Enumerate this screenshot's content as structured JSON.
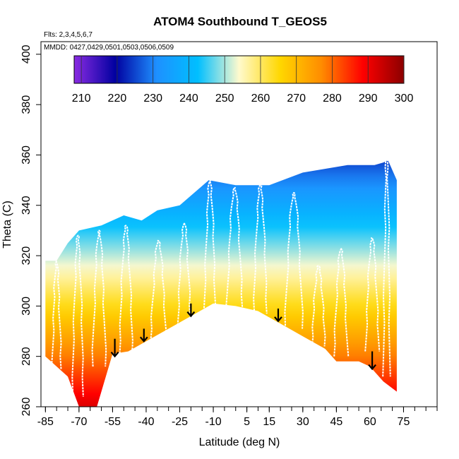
{
  "chart_data": {
    "type": "heatmap",
    "title": "ATOM4 Southbound T_GEOS5",
    "subtitle_flights": "Flts: 2,3,4,5,6,7",
    "subtitle_dates": "MMDD: 0427,0429,0501,0503,0506,0509",
    "xlabel": "Latitude (deg N)",
    "ylabel": "Theta (C)",
    "xlim": [
      -87,
      90
    ],
    "ylim": [
      260,
      405
    ],
    "x_ticks": [
      -85,
      -70,
      -55,
      -40,
      -25,
      -10,
      5,
      15,
      30,
      45,
      60,
      75
    ],
    "y_ticks": [
      260,
      280,
      300,
      320,
      340,
      360,
      380,
      400
    ],
    "colorbar": {
      "min": 208,
      "max": 300,
      "ticks": [
        210,
        220,
        230,
        240,
        250,
        260,
        270,
        280,
        290,
        300
      ],
      "colors": [
        "#8a2be2",
        "#0000a0",
        "#1e90ff",
        "#00bfff",
        "#fffacd",
        "#ffd700",
        "#ff8c00",
        "#ff0000",
        "#8b0000"
      ]
    },
    "colored_region": {
      "upper_boundary": [
        [
          -85,
          318
        ],
        [
          -80,
          318
        ],
        [
          -75,
          325
        ],
        [
          -70,
          330
        ],
        [
          -60,
          332
        ],
        [
          -50,
          336
        ],
        [
          -42,
          334
        ],
        [
          -35,
          338
        ],
        [
          -25,
          340
        ],
        [
          -12,
          350
        ],
        [
          0,
          348
        ],
        [
          15,
          348
        ],
        [
          30,
          353
        ],
        [
          50,
          356
        ],
        [
          62,
          356
        ],
        [
          66,
          357
        ],
        [
          68,
          358
        ],
        [
          72,
          350
        ]
      ],
      "lower_boundary": [
        [
          -85,
          280
        ],
        [
          -75,
          272
        ],
        [
          -70,
          260
        ],
        [
          -62,
          260
        ],
        [
          -55,
          281
        ],
        [
          -48,
          282
        ],
        [
          -40,
          286
        ],
        [
          -30,
          291
        ],
        [
          -18,
          297
        ],
        [
          -10,
          301
        ],
        [
          0,
          300
        ],
        [
          10,
          298
        ],
        [
          20,
          293
        ],
        [
          30,
          288
        ],
        [
          40,
          283
        ],
        [
          45,
          278
        ],
        [
          55,
          278
        ],
        [
          60,
          276
        ],
        [
          66,
          270
        ],
        [
          72,
          266
        ]
      ],
      "temperature_at_surface_c": 292,
      "temperature_at_top_c": 222
    },
    "tropopause_markers": [
      {
        "lat": -54,
        "theta_top": 287,
        "theta_bottom": 280
      },
      {
        "lat": -41,
        "theta_top": 291,
        "theta_bottom": 286
      },
      {
        "lat": -20,
        "theta_top": 301,
        "theta_bottom": 296
      },
      {
        "lat": 19,
        "theta_top": 299,
        "theta_bottom": 294
      },
      {
        "lat": 61,
        "theta_top": 282,
        "theta_bottom": 275
      }
    ],
    "flight_profiles_white": [
      {
        "lat_start": -82,
        "lat_end": -78,
        "theta_min": 275,
        "theta_max": 318
      },
      {
        "lat_start": -73,
        "lat_end": -68,
        "theta_min": 264,
        "theta_max": 328
      },
      {
        "lat_start": -64,
        "lat_end": -58,
        "theta_min": 276,
        "theta_max": 330
      },
      {
        "lat_start": -52,
        "lat_end": -46,
        "theta_min": 280,
        "theta_max": 332
      },
      {
        "lat_start": -38,
        "lat_end": -31,
        "theta_min": 286,
        "theta_max": 326
      },
      {
        "lat_start": -26,
        "lat_end": -20,
        "theta_min": 290,
        "theta_max": 333
      },
      {
        "lat_start": -14,
        "lat_end": -9,
        "theta_min": 298,
        "theta_max": 350
      },
      {
        "lat_start": -4,
        "lat_end": 3,
        "theta_min": 299,
        "theta_max": 347
      },
      {
        "lat_start": 8,
        "lat_end": 14,
        "theta_min": 297,
        "theta_max": 348
      },
      {
        "lat_start": 22,
        "lat_end": 30,
        "theta_min": 291,
        "theta_max": 345
      },
      {
        "lat_start": 34,
        "lat_end": 40,
        "theta_min": 284,
        "theta_max": 316
      },
      {
        "lat_start": 44,
        "lat_end": 50,
        "theta_min": 280,
        "theta_max": 323
      },
      {
        "lat_start": 58,
        "lat_end": 64,
        "theta_min": 282,
        "theta_max": 327
      },
      {
        "lat_start": 66,
        "lat_end": 69,
        "theta_min": 272,
        "theta_max": 361
      }
    ]
  }
}
